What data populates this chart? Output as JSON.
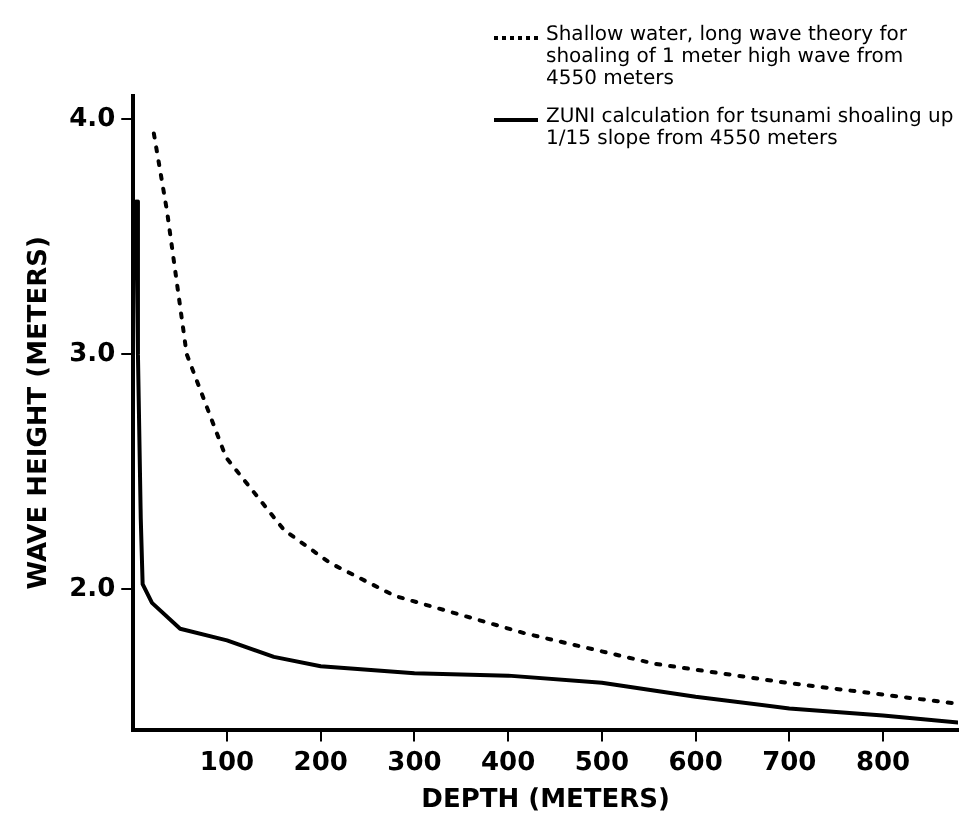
{
  "chart_data": {
    "type": "line",
    "xlabel": "DEPTH (METERS)",
    "ylabel": "WAVE HEIGHT (METERS)",
    "xlim": [
      0,
      880
    ],
    "xticks": [
      100,
      200,
      300,
      400,
      500,
      600,
      700,
      800
    ],
    "ylim": [
      1.4,
      4.1
    ],
    "yticks": [
      {
        "value": 2,
        "label": "2.0"
      },
      {
        "value": 3,
        "label": "3.0"
      },
      {
        "value": 4,
        "label": "4.0"
      }
    ],
    "grid": false,
    "legend": "top right",
    "marker": "none",
    "series": [
      {
        "name": "Shallow water, long wave theory for shoaling of 1 meter high wave from 4550 meters",
        "color": "#000000",
        "line_style": "dotted",
        "x": [
          22,
          36,
          57,
          99,
          161,
          210,
          279,
          418,
          557,
          696,
          880
        ],
        "values": [
          3.94,
          3.61,
          3.0,
          2.56,
          2.25,
          2.11,
          1.97,
          1.81,
          1.68,
          1.6,
          1.51
        ]
      },
      {
        "name": "ZUNI calculation for tsunami shoaling up 1/15 slope from 4550 meters",
        "color": "#000000",
        "line_style": "solid",
        "x": [
          3,
          5,
          8,
          10,
          20,
          50,
          100,
          150,
          200,
          300,
          400,
          500,
          600,
          700,
          800,
          880
        ],
        "values": [
          3.65,
          3.0,
          2.3,
          2.02,
          1.94,
          1.83,
          1.78,
          1.71,
          1.67,
          1.64,
          1.63,
          1.6,
          1.54,
          1.49,
          1.46,
          1.43
        ]
      }
    ]
  }
}
